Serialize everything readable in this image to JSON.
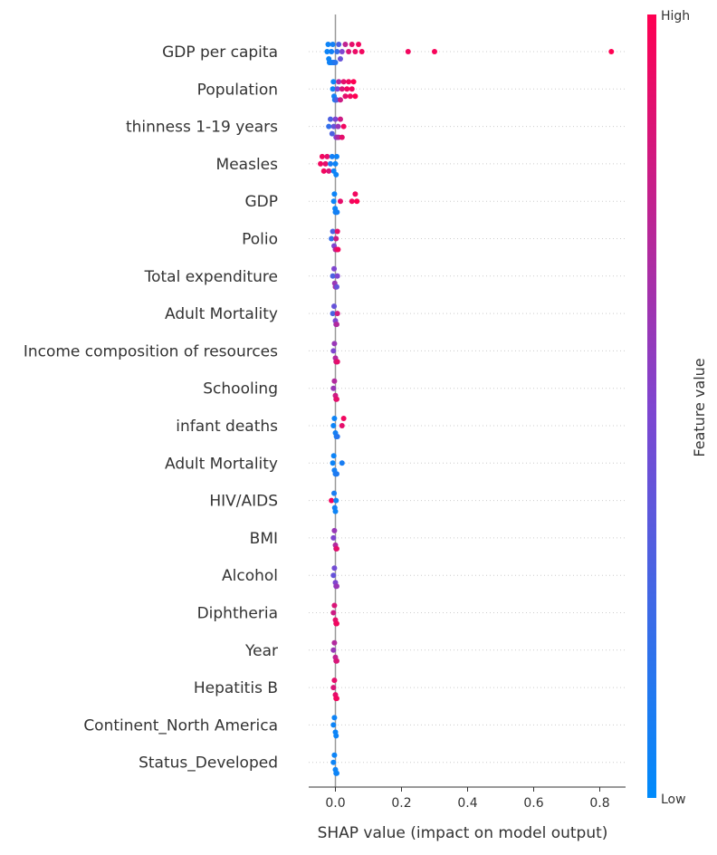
{
  "chart_data": {
    "type": "scatter",
    "subtype": "beeswarm",
    "title": "",
    "xlabel": "SHAP value (impact on model output)",
    "ylabel": "",
    "xlim": [
      -0.08,
      0.88
    ],
    "xticks": [
      0.0,
      0.2,
      0.4,
      0.6,
      0.8
    ],
    "xtick_labels": [
      "0.0",
      "0.2",
      "0.4",
      "0.6",
      "0.8"
    ],
    "zero_line": true,
    "row_gridlines": "dotted",
    "colorbar": {
      "label": "Feature value",
      "high_label": "High",
      "low_label": "Low",
      "high_color": "#ff0052",
      "low_color": "#008bfb"
    },
    "features": [
      {
        "name": "GDP per capita",
        "shap_values": [
          -0.025,
          -0.022,
          -0.02,
          -0.018,
          -0.016,
          -0.014,
          -0.012,
          -0.01,
          -0.008,
          -0.006,
          -0.004,
          -0.002,
          0.0,
          0.005,
          0.01,
          0.015,
          0.02,
          0.03,
          0.04,
          0.05,
          0.06,
          0.07,
          0.08,
          0.22,
          0.3,
          0.835
        ],
        "feature_values": [
          0.05,
          0.05,
          0.05,
          0.06,
          0.06,
          0.07,
          0.07,
          0.08,
          0.08,
          0.1,
          0.1,
          0.12,
          0.15,
          0.2,
          0.3,
          0.4,
          0.5,
          0.75,
          0.85,
          0.9,
          0.92,
          0.95,
          0.95,
          0.95,
          0.97,
          1.0
        ]
      },
      {
        "name": "Population",
        "shap_values": [
          -0.008,
          -0.006,
          -0.004,
          -0.002,
          0.0,
          0.002,
          0.004,
          0.006,
          0.01,
          0.015,
          0.02,
          0.025,
          0.03,
          0.035,
          0.04,
          0.045,
          0.05,
          0.055,
          0.06
        ],
        "feature_values": [
          0.05,
          0.05,
          0.08,
          0.1,
          0.1,
          0.2,
          0.3,
          0.5,
          0.7,
          0.8,
          0.85,
          0.9,
          0.9,
          0.95,
          0.95,
          0.95,
          0.95,
          1.0,
          1.0
        ]
      },
      {
        "name": "thinness  1-19 years",
        "shap_values": [
          -0.02,
          -0.015,
          -0.01,
          -0.005,
          0.0,
          0.002,
          0.005,
          0.008,
          0.01,
          0.015,
          0.02,
          0.025
        ],
        "feature_values": [
          0.2,
          0.3,
          0.3,
          0.4,
          0.5,
          0.5,
          0.6,
          0.6,
          0.7,
          0.8,
          0.9,
          0.95
        ]
      },
      {
        "name": "Measles ",
        "shap_values": [
          -0.045,
          -0.04,
          -0.035,
          -0.03,
          -0.025,
          -0.02,
          -0.015,
          -0.01,
          -0.005,
          0.0,
          0.002,
          0.004
        ],
        "feature_values": [
          0.95,
          0.95,
          0.95,
          0.9,
          0.9,
          0.85,
          0.1,
          0.08,
          0.05,
          0.05,
          0.05,
          0.05
        ]
      },
      {
        "name": "GDP",
        "shap_values": [
          -0.005,
          -0.003,
          -0.001,
          0.0,
          0.001,
          0.003,
          0.005,
          0.015,
          0.05,
          0.06,
          0.065
        ],
        "feature_values": [
          0.05,
          0.05,
          0.05,
          0.06,
          0.06,
          0.07,
          0.08,
          0.9,
          0.95,
          0.95,
          1.0
        ]
      },
      {
        "name": "Polio",
        "shap_values": [
          -0.012,
          -0.008,
          -0.004,
          0.0,
          0.002,
          0.004,
          0.006,
          0.008
        ],
        "feature_values": [
          0.2,
          0.3,
          0.5,
          0.7,
          0.8,
          0.85,
          0.9,
          0.95
        ]
      },
      {
        "name": "Total expenditure",
        "shap_values": [
          -0.008,
          -0.004,
          -0.002,
          0.0,
          0.002,
          0.004,
          0.006
        ],
        "feature_values": [
          0.3,
          0.5,
          0.6,
          0.6,
          0.7,
          0.4,
          0.5
        ]
      },
      {
        "name": "Adult Mortality",
        "shap_values": [
          -0.008,
          -0.004,
          0.0,
          0.002,
          0.004,
          0.006
        ],
        "feature_values": [
          0.3,
          0.4,
          0.5,
          0.6,
          0.7,
          0.8
        ]
      },
      {
        "name": "Income composition of resources",
        "shap_values": [
          -0.006,
          -0.003,
          0.0,
          0.002,
          0.004,
          0.006
        ],
        "feature_values": [
          0.5,
          0.6,
          0.7,
          0.8,
          0.85,
          0.9
        ]
      },
      {
        "name": "Schooling",
        "shap_values": [
          -0.006,
          -0.003,
          0.0,
          0.002,
          0.004
        ],
        "feature_values": [
          0.6,
          0.7,
          0.8,
          0.85,
          0.9
        ]
      },
      {
        "name": "infant deaths",
        "shap_values": [
          -0.006,
          -0.003,
          0.0,
          0.003,
          0.006,
          0.02,
          0.025
        ],
        "feature_values": [
          0.05,
          0.05,
          0.08,
          0.1,
          0.15,
          0.9,
          0.95
        ]
      },
      {
        "name": "Adult Mortality ",
        "shap_values": [
          -0.008,
          -0.005,
          -0.003,
          0.0,
          0.002,
          0.004,
          0.02
        ],
        "feature_values": [
          0.05,
          0.05,
          0.08,
          0.1,
          0.1,
          0.12,
          0.1
        ]
      },
      {
        "name": "HIV/AIDS",
        "shap_values": [
          -0.012,
          -0.004,
          -0.002,
          0.0,
          0.002
        ],
        "feature_values": [
          0.95,
          0.1,
          0.08,
          0.05,
          0.05
        ]
      },
      {
        "name": "BMI ",
        "shap_values": [
          -0.006,
          -0.003,
          0.0,
          0.002,
          0.004
        ],
        "feature_values": [
          0.5,
          0.6,
          0.7,
          0.8,
          0.9
        ]
      },
      {
        "name": "Alcohol",
        "shap_values": [
          -0.006,
          -0.003,
          0.0,
          0.002,
          0.004
        ],
        "feature_values": [
          0.4,
          0.45,
          0.5,
          0.55,
          0.6
        ]
      },
      {
        "name": "Diphtheria ",
        "shap_values": [
          -0.006,
          -0.003,
          0.0,
          0.002,
          0.004
        ],
        "feature_values": [
          0.8,
          0.85,
          0.9,
          0.9,
          0.95
        ]
      },
      {
        "name": "Year",
        "shap_values": [
          -0.006,
          -0.003,
          0.0,
          0.002,
          0.004
        ],
        "feature_values": [
          0.6,
          0.7,
          0.75,
          0.8,
          0.85
        ]
      },
      {
        "name": "Hepatitis B",
        "shap_values": [
          -0.006,
          -0.003,
          0.0,
          0.002,
          0.004
        ],
        "feature_values": [
          0.85,
          0.9,
          0.9,
          0.95,
          0.95
        ]
      },
      {
        "name": "Continent_North America",
        "shap_values": [
          -0.006,
          -0.003,
          0.0,
          0.002
        ],
        "feature_values": [
          0.05,
          0.05,
          0.05,
          0.05
        ]
      },
      {
        "name": "Status_Developed",
        "shap_values": [
          -0.006,
          -0.003,
          0.0,
          0.002,
          0.004
        ],
        "feature_values": [
          0.05,
          0.05,
          0.05,
          0.05,
          0.05
        ]
      }
    ]
  }
}
